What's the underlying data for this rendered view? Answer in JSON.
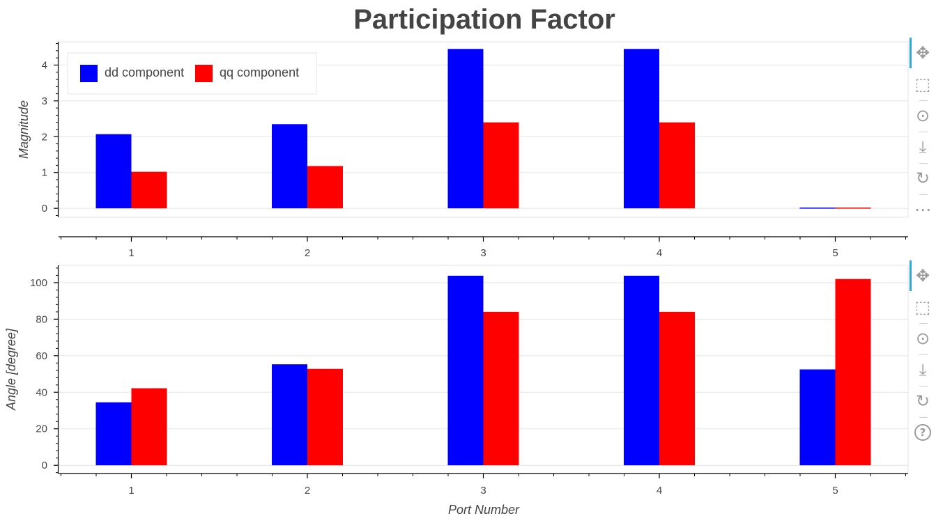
{
  "title": "Participation Factor",
  "colors": {
    "dd": "#0000ff",
    "qq": "#ff0000",
    "grid": "#e5e5e5",
    "axis": "#000000",
    "text": "#444444",
    "toolbar_active": "#26aae1"
  },
  "legend": {
    "placement": "top-left",
    "entries": [
      "dd component",
      "qq component"
    ]
  },
  "toolbar": {
    "icons": [
      "pan-icon",
      "box-zoom-icon",
      "wheel-zoom-icon",
      "save-icon",
      "reset-icon"
    ],
    "top_extra_icon": "more-icon",
    "bottom_extra_icon": "help-icon",
    "active": "pan-icon"
  },
  "chart_data": [
    {
      "type": "bar",
      "title": "",
      "xlabel": "",
      "ylabel": "Magnitude",
      "categories": [
        "1",
        "2",
        "3",
        "4",
        "5"
      ],
      "series": [
        {
          "name": "dd component",
          "color": "#0000ff",
          "values": [
            2.07,
            2.35,
            4.45,
            4.45,
            0.02
          ]
        },
        {
          "name": "qq component",
          "color": "#ff0000",
          "values": [
            1.02,
            1.18,
            2.4,
            2.4,
            0.02
          ]
        }
      ],
      "yticks": [
        "0",
        "1",
        "2",
        "3",
        "4"
      ],
      "ylim": [
        -0.25,
        4.65
      ],
      "grid": true
    },
    {
      "type": "bar",
      "title": "",
      "xlabel": "Port Number",
      "ylabel": "Angle [degree]",
      "categories": [
        "1",
        "2",
        "3",
        "4",
        "5"
      ],
      "series": [
        {
          "name": "dd component",
          "color": "#0000ff",
          "values": [
            34.5,
            55.3,
            103.8,
            103.8,
            52.5
          ]
        },
        {
          "name": "qq component",
          "color": "#ff0000",
          "values": [
            42.2,
            52.8,
            84.0,
            84.0,
            102.0
          ]
        }
      ],
      "yticks": [
        "0",
        "20",
        "40",
        "60",
        "80",
        "100"
      ],
      "ylim": [
        -4.5,
        109.5
      ],
      "grid": true
    }
  ]
}
